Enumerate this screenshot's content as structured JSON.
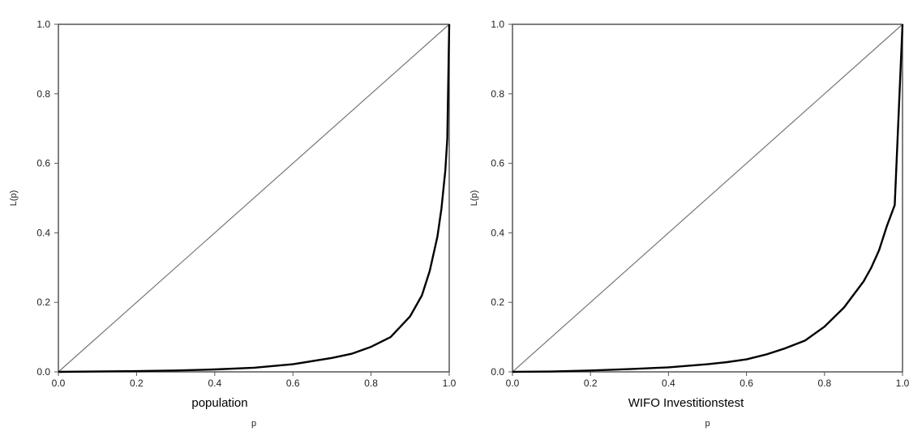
{
  "chart_data": [
    {
      "type": "line",
      "caption": "population",
      "xlabel": "p",
      "ylabel": "L(p)",
      "xlim": [
        0,
        1
      ],
      "ylim": [
        0,
        1
      ],
      "xticks": [
        "0.0",
        "0.2",
        "0.4",
        "0.6",
        "0.8",
        "1.0"
      ],
      "yticks": [
        "0.0",
        "0.2",
        "0.4",
        "0.6",
        "0.8",
        "1.0"
      ],
      "grid": false,
      "series": [
        {
          "role": "equality-line",
          "x": [
            0,
            1
          ],
          "y": [
            0,
            1
          ]
        },
        {
          "role": "lorenz-curve",
          "x": [
            0,
            0.2,
            0.3,
            0.4,
            0.5,
            0.6,
            0.7,
            0.75,
            0.8,
            0.85,
            0.9,
            0.93,
            0.95,
            0.97,
            0.98,
            0.99,
            0.995,
            1.0
          ],
          "y": [
            0,
            0.002,
            0.004,
            0.007,
            0.012,
            0.022,
            0.04,
            0.052,
            0.072,
            0.1,
            0.16,
            0.22,
            0.29,
            0.39,
            0.47,
            0.58,
            0.67,
            1.0
          ]
        }
      ]
    },
    {
      "type": "line",
      "caption": "WIFO Investitionstest",
      "xlabel": "p",
      "ylabel": "L(p)",
      "xlim": [
        0,
        1
      ],
      "ylim": [
        0,
        1
      ],
      "xticks": [
        "0.0",
        "0.2",
        "0.4",
        "0.6",
        "0.8",
        "1.0"
      ],
      "yticks": [
        "0.0",
        "0.2",
        "0.4",
        "0.6",
        "0.8",
        "1.0"
      ],
      "grid": false,
      "series": [
        {
          "role": "equality-line",
          "x": [
            0,
            1
          ],
          "y": [
            0,
            1
          ]
        },
        {
          "role": "lorenz-curve",
          "x": [
            0,
            0.1,
            0.2,
            0.3,
            0.4,
            0.5,
            0.55,
            0.6,
            0.65,
            0.7,
            0.75,
            0.8,
            0.85,
            0.9,
            0.92,
            0.94,
            0.96,
            0.98,
            1.0
          ],
          "y": [
            0,
            0.001,
            0.004,
            0.008,
            0.013,
            0.022,
            0.028,
            0.036,
            0.05,
            0.068,
            0.09,
            0.13,
            0.185,
            0.26,
            0.3,
            0.35,
            0.42,
            0.48,
            1.0
          ]
        }
      ]
    }
  ]
}
